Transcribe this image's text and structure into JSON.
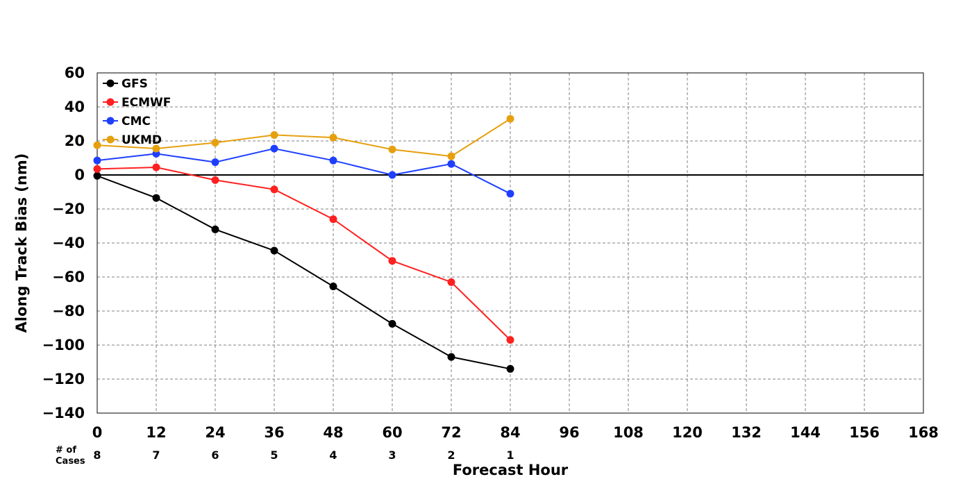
{
  "chart_data": {
    "type": "line",
    "xlabel": "Forecast Hour",
    "ylabel": "Along Track Bias (nm)",
    "xlim": [
      0,
      168
    ],
    "ylim": [
      -140,
      60
    ],
    "x_ticks": [
      0,
      12,
      24,
      36,
      48,
      60,
      72,
      84,
      96,
      108,
      120,
      132,
      144,
      156,
      168
    ],
    "y_ticks": [
      60,
      40,
      20,
      0,
      -20,
      -40,
      -60,
      -80,
      -100,
      -120,
      -140
    ],
    "grid": true,
    "zero_line": true,
    "legend_position": "top-left",
    "x": [
      0,
      12,
      24,
      36,
      48,
      60,
      72,
      84
    ],
    "series": [
      {
        "name": "GFS",
        "color": "#000000",
        "values": [
          -0.5,
          -13.5,
          -32,
          -44.5,
          -65.5,
          -87.5,
          -107,
          -114
        ]
      },
      {
        "name": "ECMWF",
        "color": "#ff2020",
        "values": [
          3.5,
          4.5,
          -3,
          -8.5,
          -26,
          -50.5,
          -63,
          -97
        ]
      },
      {
        "name": "CMC",
        "color": "#1f3fff",
        "values": [
          8.5,
          12.5,
          7.5,
          15.5,
          8.5,
          0,
          6.5,
          -11
        ]
      },
      {
        "name": "UKMD",
        "color": "#e6a00f",
        "values": [
          17.5,
          15.5,
          19,
          23.5,
          22,
          15,
          11,
          33
        ]
      }
    ],
    "cases_label": "# of Cases",
    "cases": [
      {
        "x": 0,
        "n": "8"
      },
      {
        "x": 12,
        "n": "7"
      },
      {
        "x": 24,
        "n": "6"
      },
      {
        "x": 36,
        "n": "5"
      },
      {
        "x": 48,
        "n": "4"
      },
      {
        "x": 60,
        "n": "3"
      },
      {
        "x": 72,
        "n": "2"
      },
      {
        "x": 84,
        "n": "1"
      }
    ]
  }
}
